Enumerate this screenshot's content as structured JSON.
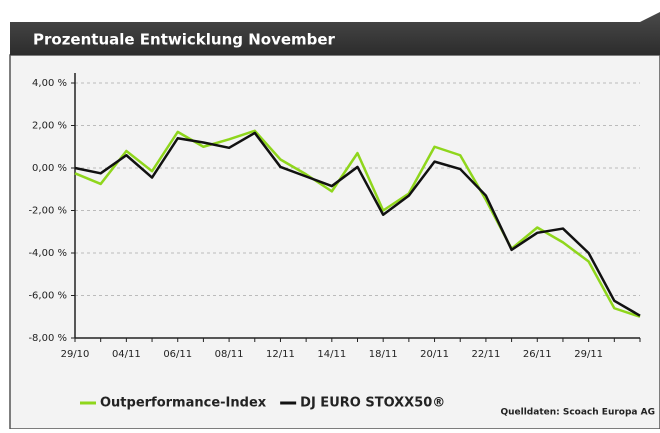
{
  "chart_data": {
    "type": "line",
    "title": "Prozentuale Entwicklung November",
    "source": "Quelldaten: Scoach Europa AG",
    "categories": [
      "29/10",
      null,
      "04/11",
      null,
      "06/11",
      null,
      "08/11",
      null,
      "12/11",
      null,
      "14/11",
      null,
      "18/11",
      null,
      "20/11",
      null,
      "22/11",
      null,
      "26/11",
      null,
      "29/11",
      null,
      null
    ],
    "series": [
      {
        "name": "Outperformance-Index",
        "color": "#8fd61c",
        "values": [
          -0.25,
          -0.75,
          0.8,
          -0.15,
          1.7,
          1.0,
          1.35,
          1.75,
          0.4,
          -0.3,
          -1.1,
          0.7,
          -2.0,
          -1.2,
          1.0,
          0.6,
          -1.5,
          -3.8,
          -2.8,
          -3.5,
          -4.4,
          -6.6,
          -7.0
        ]
      },
      {
        "name": "DJ EURO STOXX50®",
        "color": "#111111",
        "values": [
          0,
          -0.25,
          0.6,
          -0.45,
          1.4,
          1.2,
          0.95,
          1.65,
          0.05,
          -0.4,
          -0.85,
          0.05,
          -2.2,
          -1.3,
          0.3,
          -0.05,
          -1.3,
          -3.85,
          -3.05,
          -2.85,
          -4.0,
          -6.25,
          -6.95
        ]
      }
    ],
    "ylim": [
      -8,
      4
    ],
    "yticks": [
      {
        "value": 4,
        "label": "4,00 %"
      },
      {
        "value": 2,
        "label": "2,00 %"
      },
      {
        "value": 0,
        "label": "0,00 %"
      },
      {
        "value": -2,
        "label": "-2,00 %"
      },
      {
        "value": -4,
        "label": "-4,00 %"
      },
      {
        "value": -6,
        "label": "-6,00 %"
      },
      {
        "value": -8,
        "label": "-8,00 %"
      }
    ],
    "grid": true
  }
}
